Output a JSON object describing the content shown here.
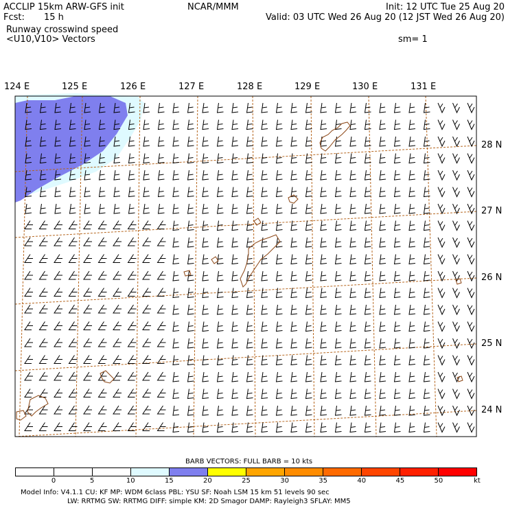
{
  "header": {
    "left_line1": "ACCLIP 15km ARW-GFS init",
    "left_line2_label": "Fcst:",
    "left_line2_value": "15 h",
    "center": "NCAR/MMM",
    "right_line1": "Init: 12 UTC Tue 25 Aug 20",
    "right_line2": "Valid: 03 UTC Wed 26 Aug 20 (12 JST Wed 26 Aug 20)",
    "field_title": "Runway crosswind speed",
    "field_subtitle": "<U10,V10> Vectors",
    "smoothing": "sm= 1"
  },
  "map": {
    "lon_labels": [
      "124 E",
      "125 E",
      "126 E",
      "127 E",
      "128 E",
      "129 E",
      "130 E",
      "131 E"
    ],
    "lat_labels": [
      "28 N",
      "27 N",
      "26 N",
      "25 N",
      "24 N"
    ],
    "colors": {
      "grid_lines": "#b5651d",
      "coastline": "#8b4513",
      "shade_15_20": "#dffaff",
      "shade_20_25": "#7f7fee"
    }
  },
  "legend": {
    "barb_note": "BARB VECTORS:  FULL BARB = 10 kts",
    "ticks": [
      "0",
      "5",
      "10",
      "15",
      "20",
      "25",
      "30",
      "35",
      "40",
      "45",
      "50",
      "kt"
    ],
    "colors": [
      "#ffffff",
      "#ffffff",
      "#ffffff",
      "#dffaff",
      "#7f7fee",
      "#ffff00",
      "#ffa500",
      "#ff8c00",
      "#ff6a00",
      "#ff4500",
      "#ff2000",
      "#ff0000"
    ]
  },
  "footer": {
    "line1": "Model Info: V4.1.1     CU: KF       MP: WDM 6class   PBL: YSU       SF: Noah LSM     15 km    51 levels    90 sec",
    "line2": "LW: RRTMG    SW: RRTMG   DIFF: simple KM: 2D Smagor DAMP: Rayleigh3   SFLAY: MM5"
  }
}
